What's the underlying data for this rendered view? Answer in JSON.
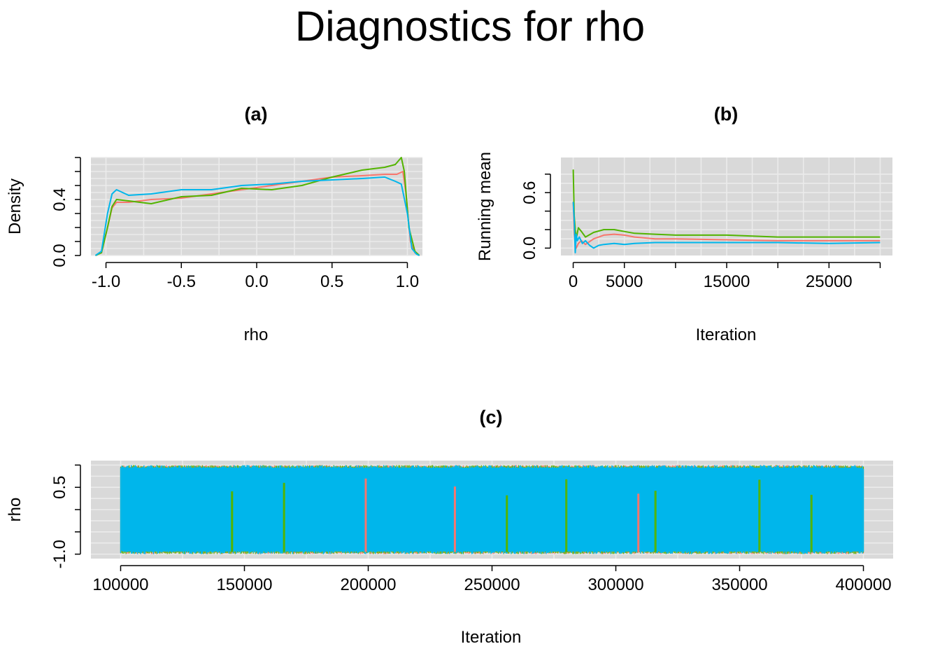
{
  "title": "Diagnostics for rho",
  "colors": {
    "chain1": "#F8766D",
    "chain2": "#53B400",
    "chain3": "#00B6EB",
    "panel_bg": "#d9d9d9",
    "grid": "#ebebeb"
  },
  "chart_data": [
    {
      "id": "a",
      "type": "line",
      "title": "(a)",
      "xlabel": "rho",
      "ylabel": "Density",
      "xlim": [
        -1.1,
        1.1
      ],
      "ylim": [
        0.0,
        0.7
      ],
      "xticks": [
        -1.0,
        -0.5,
        0.0,
        0.5,
        1.0
      ],
      "xtick_labels": [
        "-1.0",
        "-0.5",
        "0.0",
        "0.5",
        "1.0"
      ],
      "yticks": [
        0.0,
        0.1,
        0.2,
        0.3,
        0.4,
        0.5,
        0.6,
        0.7
      ],
      "ytick_labels": [
        "0.0",
        "",
        "",
        "",
        "0.4",
        "",
        "",
        ""
      ],
      "grid": true,
      "series": [
        {
          "color": "#F8766D",
          "x": [
            -1.07,
            -1.03,
            -0.99,
            -0.96,
            -0.93,
            -0.85,
            -0.7,
            -0.5,
            -0.3,
            -0.1,
            0.1,
            0.3,
            0.5,
            0.7,
            0.85,
            0.93,
            0.97,
            0.99,
            1.02,
            1.05,
            1.08
          ],
          "y": [
            0.0,
            0.02,
            0.2,
            0.34,
            0.38,
            0.38,
            0.4,
            0.41,
            0.44,
            0.47,
            0.5,
            0.53,
            0.56,
            0.57,
            0.58,
            0.58,
            0.6,
            0.45,
            0.1,
            0.02,
            0.0
          ]
        },
        {
          "color": "#53B400",
          "x": [
            -1.07,
            -1.03,
            -0.99,
            -0.96,
            -0.93,
            -0.85,
            -0.7,
            -0.5,
            -0.3,
            -0.1,
            0.1,
            0.3,
            0.5,
            0.7,
            0.85,
            0.92,
            0.96,
            0.98,
            1.01,
            1.05,
            1.08
          ],
          "y": [
            0.0,
            0.02,
            0.2,
            0.35,
            0.4,
            0.39,
            0.37,
            0.42,
            0.43,
            0.48,
            0.47,
            0.5,
            0.56,
            0.61,
            0.63,
            0.65,
            0.7,
            0.6,
            0.2,
            0.03,
            0.0
          ]
        },
        {
          "color": "#00B6EB",
          "x": [
            -1.07,
            -1.03,
            -0.99,
            -0.96,
            -0.93,
            -0.85,
            -0.7,
            -0.5,
            -0.3,
            -0.1,
            0.1,
            0.3,
            0.5,
            0.7,
            0.85,
            0.92,
            0.96,
            1.0,
            1.03,
            1.06,
            1.08
          ],
          "y": [
            0.0,
            0.03,
            0.3,
            0.44,
            0.47,
            0.43,
            0.44,
            0.47,
            0.47,
            0.5,
            0.51,
            0.53,
            0.54,
            0.55,
            0.56,
            0.53,
            0.51,
            0.3,
            0.05,
            0.01,
            0.0
          ]
        }
      ]
    },
    {
      "id": "b",
      "type": "line",
      "title": "(b)",
      "xlabel": "Iteration",
      "ylabel": "Running mean",
      "xlim": [
        -1200,
        31200
      ],
      "ylim": [
        -0.08,
        0.98
      ],
      "xticks": [
        0,
        5000,
        10000,
        15000,
        20000,
        25000,
        30000
      ],
      "xtick_labels": [
        "0",
        "5000",
        "",
        "15000",
        "",
        "25000",
        ""
      ],
      "yticks": [
        0.0,
        0.2,
        0.4,
        0.6,
        0.8
      ],
      "ytick_labels": [
        "0.0",
        "",
        "",
        "0.6",
        ""
      ],
      "grid": true,
      "series": [
        {
          "color": "#F8766D",
          "x": [
            0,
            100,
            200,
            300,
            500,
            800,
            1200,
            2000,
            3000,
            4000,
            5000,
            6000,
            8000,
            10000,
            15000,
            20000,
            25000,
            30000
          ],
          "y": [
            0.5,
            0.15,
            0.05,
            0.0,
            0.05,
            0.08,
            0.04,
            0.1,
            0.14,
            0.15,
            0.14,
            0.12,
            0.1,
            0.1,
            0.09,
            0.08,
            0.08,
            0.08
          ]
        },
        {
          "color": "#53B400",
          "x": [
            0,
            50,
            100,
            200,
            300,
            500,
            800,
            1200,
            2000,
            3000,
            4000,
            5000,
            6000,
            8000,
            10000,
            15000,
            20000,
            25000,
            30000
          ],
          "y": [
            0.85,
            0.6,
            0.35,
            0.2,
            0.1,
            0.22,
            0.18,
            0.12,
            0.17,
            0.2,
            0.2,
            0.18,
            0.16,
            0.15,
            0.14,
            0.14,
            0.12,
            0.12,
            0.12
          ]
        },
        {
          "color": "#00B6EB",
          "x": [
            0,
            100,
            200,
            300,
            400,
            600,
            900,
            1200,
            1600,
            2000,
            2500,
            3000,
            4000,
            5000,
            6000,
            8000,
            10000,
            15000,
            20000,
            25000,
            30000
          ],
          "y": [
            0.5,
            0.3,
            -0.05,
            0.15,
            0.08,
            0.12,
            0.05,
            0.08,
            0.03,
            0.0,
            0.03,
            0.04,
            0.05,
            0.04,
            0.05,
            0.06,
            0.06,
            0.06,
            0.06,
            0.05,
            0.06
          ]
        }
      ]
    },
    {
      "id": "c",
      "type": "line",
      "title": "(c)",
      "xlabel": "Iteration",
      "ylabel": "rho",
      "xlim": [
        88000,
        412000
      ],
      "ylim": [
        -1.1,
        1.1
      ],
      "xticks": [
        100000,
        150000,
        200000,
        250000,
        300000,
        350000,
        400000
      ],
      "xtick_labels": [
        "100000",
        "150000",
        "200000",
        "250000",
        "300000",
        "350000",
        "400000"
      ],
      "yticks": [
        -1.0,
        -0.5,
        0.0,
        0.5,
        1.0
      ],
      "ytick_labels": [
        "-1.0",
        "",
        "",
        "0.5",
        ""
      ],
      "grid": true,
      "series_colors": [
        "#F8766D",
        "#53B400",
        "#00B6EB"
      ],
      "band_range": [
        -1.0,
        1.0
      ],
      "iteration_range": [
        100000,
        400000
      ]
    }
  ]
}
